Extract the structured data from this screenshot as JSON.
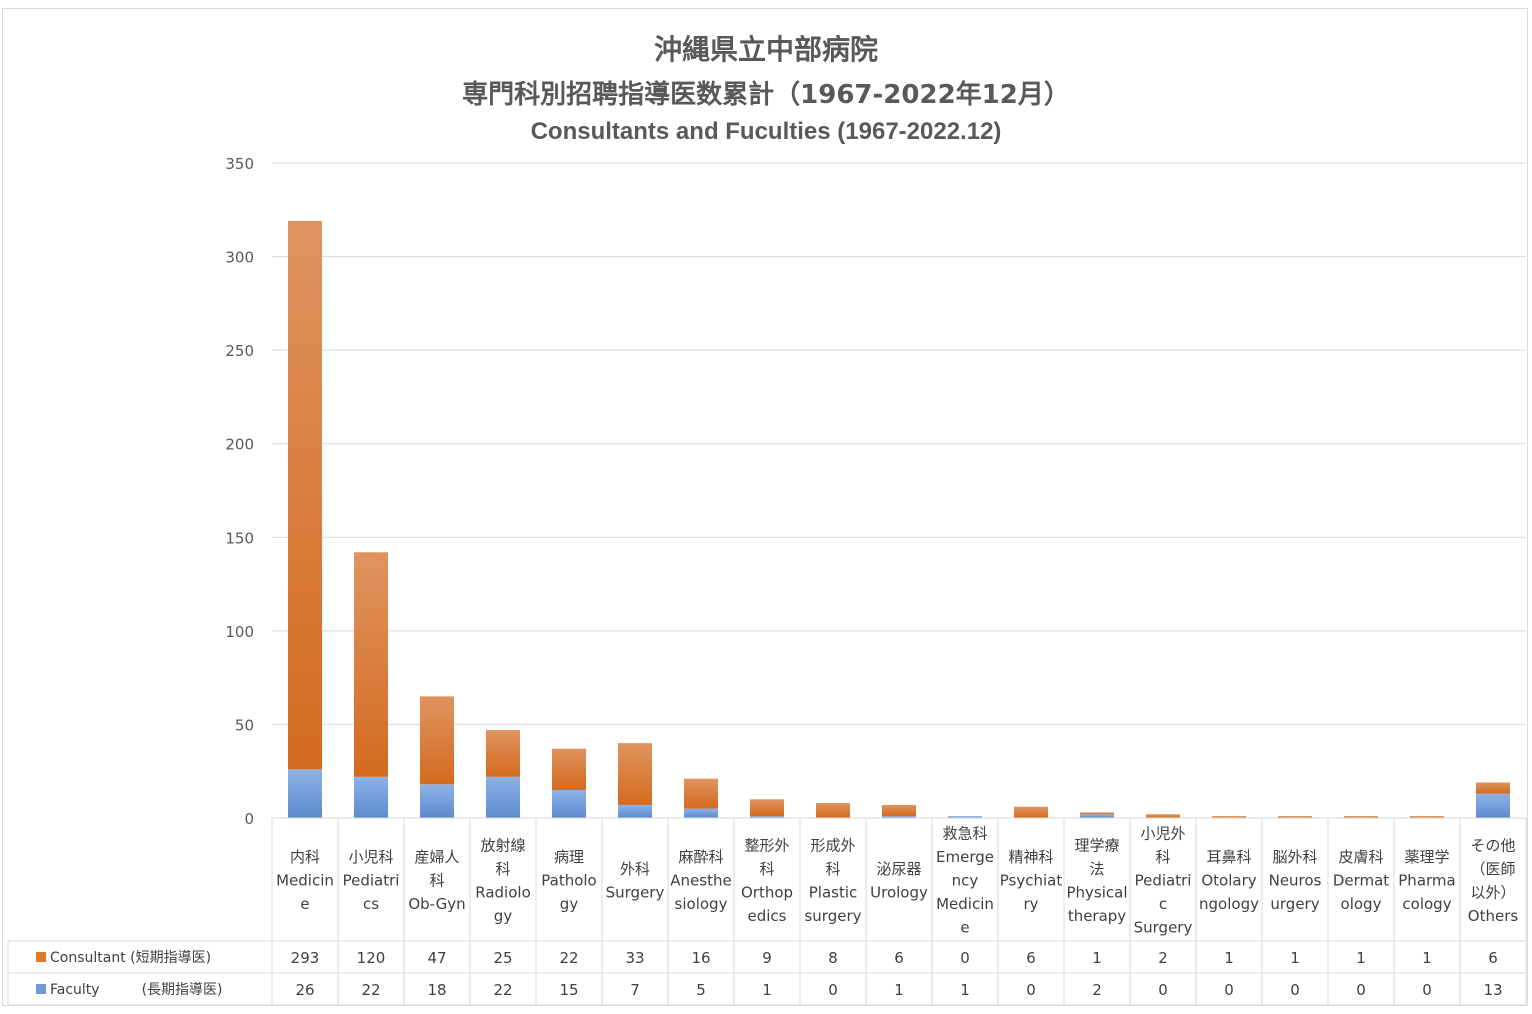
{
  "title": {
    "line1": "沖縄県立中部病院",
    "line2": "専門科別招聘指導医数累計（1967-2022年12月）",
    "line3": "Consultants and Fuculties (1967-2022.12)"
  },
  "colors": {
    "consultant": "#e07b2e",
    "faculty": "#6e9bd8",
    "grid": "#d9d9d9",
    "axis_text": "#595959"
  },
  "chart_data": {
    "type": "bar",
    "stacked": true,
    "ylim": [
      0,
      350
    ],
    "yticks": [
      "0",
      "50",
      "100",
      "150",
      "200",
      "250",
      "300",
      "350"
    ],
    "grid": true,
    "categories": [
      [
        "内科",
        "Medicin",
        "e"
      ],
      [
        "小児科",
        "Pediatri",
        "cs"
      ],
      [
        "産婦人",
        "科",
        "Ob-Gyn"
      ],
      [
        "放射線",
        "科",
        "Radiolo",
        "gy"
      ],
      [
        "病理",
        "Patholo",
        "gy"
      ],
      [
        "外科",
        "Surgery"
      ],
      [
        "麻酔科",
        "Anesthe",
        "siology"
      ],
      [
        "整形外",
        "科",
        "Orthop",
        "edics"
      ],
      [
        "形成外",
        "科",
        "Plastic",
        "surgery"
      ],
      [
        "泌尿器",
        "Urology"
      ],
      [
        "救急科",
        "Emerge",
        "ncy",
        "Medicin",
        "e"
      ],
      [
        "精神科",
        "Psychiat",
        "ry"
      ],
      [
        "理学療",
        "法",
        "Physical",
        "therapy"
      ],
      [
        "小児外",
        "科",
        "Pediatri",
        "c",
        "Surgery"
      ],
      [
        "耳鼻科",
        "Otolary",
        "ngology"
      ],
      [
        "脳外科",
        "Neuros",
        "urgery"
      ],
      [
        "皮膚科",
        "Dermat",
        "ology"
      ],
      [
        "薬理学",
        "Pharma",
        "cology"
      ],
      [
        "その他",
        "（医師",
        "以外）",
        "Others"
      ]
    ],
    "series": [
      {
        "name": "Consultant (短期指導医)",
        "values": [
          293,
          120,
          47,
          25,
          22,
          33,
          16,
          9,
          8,
          6,
          0,
          6,
          1,
          2,
          1,
          1,
          1,
          1,
          6
        ]
      },
      {
        "name": "Faculty　　　(長期指導医)",
        "values": [
          26,
          22,
          18,
          22,
          15,
          7,
          5,
          1,
          0,
          1,
          1,
          0,
          2,
          0,
          0,
          0,
          0,
          0,
          13
        ]
      }
    ]
  }
}
